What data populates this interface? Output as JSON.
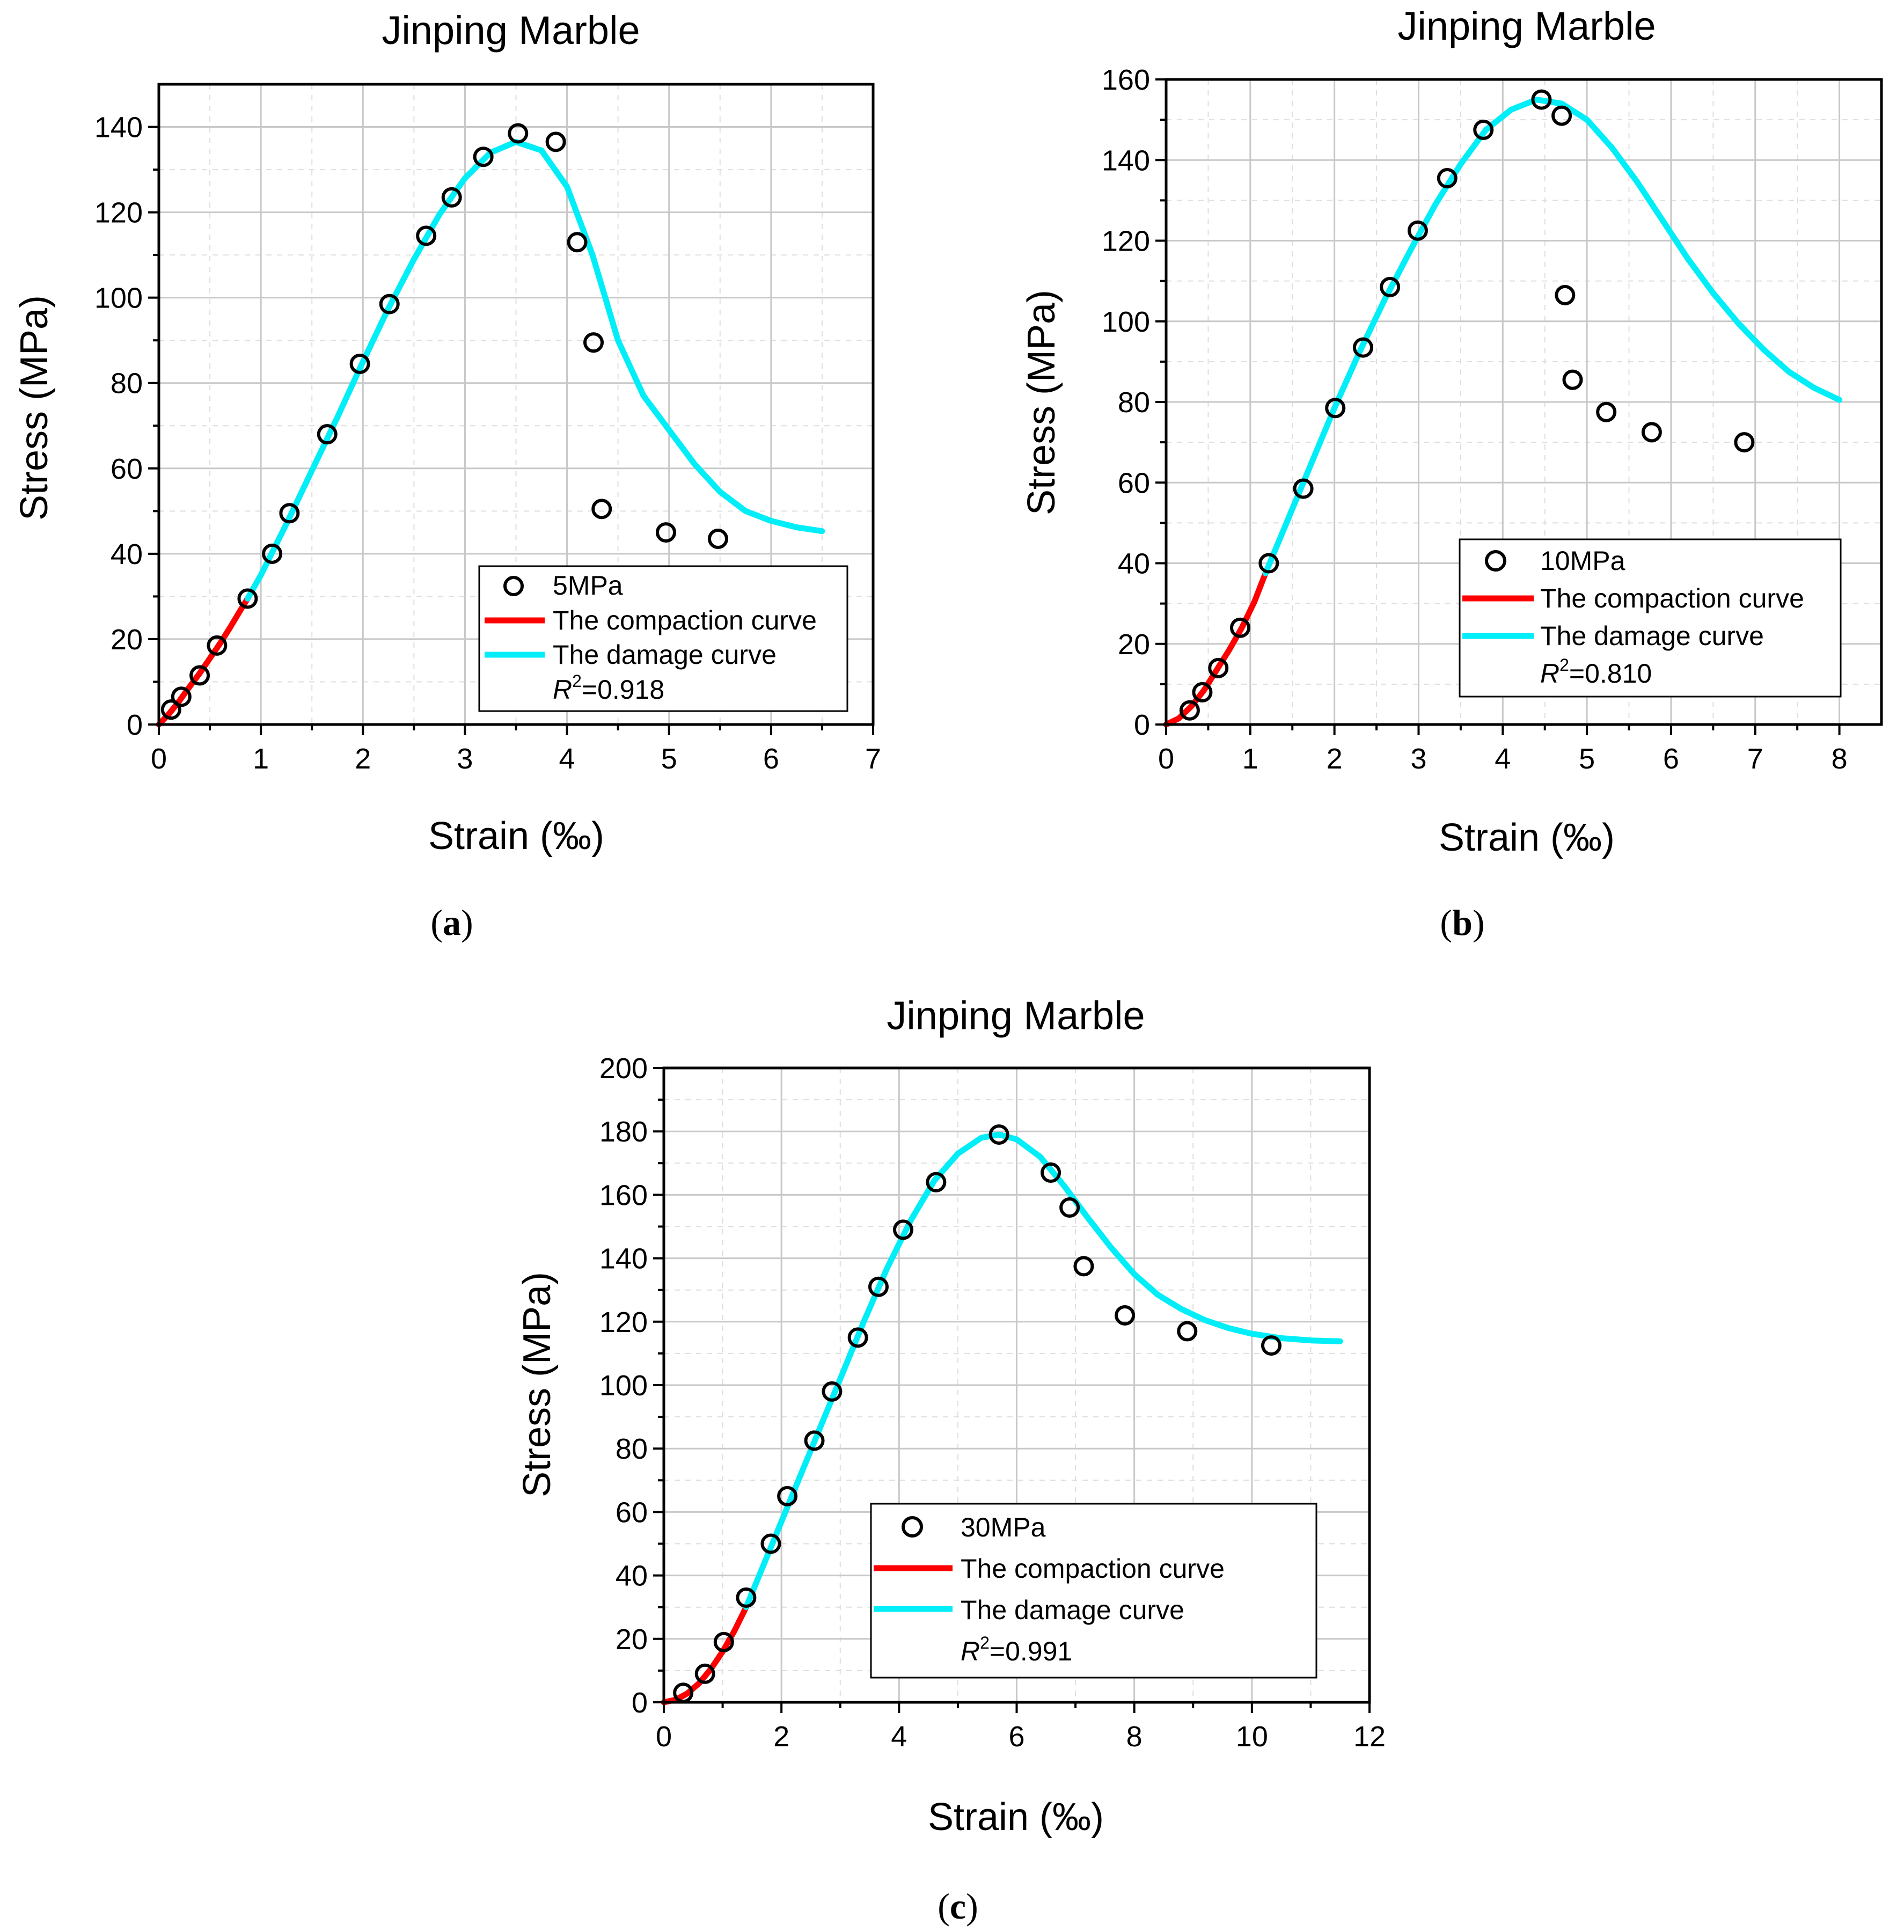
{
  "chart_data": [
    {
      "id": "a",
      "type": "scatter",
      "caption_letter": "a",
      "title": "Jinping Marble",
      "xlabel": "Strain (‰)",
      "ylabel": "Stress (MPa)",
      "xlim": [
        0,
        7
      ],
      "ylim": [
        0,
        150
      ],
      "xticks": [
        0,
        1,
        2,
        3,
        4,
        5,
        6,
        7
      ],
      "yticks": [
        0,
        20,
        40,
        60,
        80,
        100,
        120,
        140
      ],
      "grid": true,
      "legend_position": "bottom-right",
      "series": [
        {
          "name": "5MPa",
          "kind": "scatter",
          "color": "#000000",
          "points": [
            [
              0.12,
              3.5
            ],
            [
              0.22,
              6.5
            ],
            [
              0.4,
              11.5
            ],
            [
              0.57,
              18.5
            ],
            [
              0.87,
              29.5
            ],
            [
              1.11,
              40
            ],
            [
              1.28,
              49.5
            ],
            [
              1.65,
              68
            ],
            [
              1.97,
              84.5
            ],
            [
              2.26,
              98.5
            ],
            [
              2.62,
              114.5
            ],
            [
              2.87,
              123.5
            ],
            [
              3.18,
              133
            ],
            [
              3.52,
              138.5
            ],
            [
              3.89,
              136.5
            ],
            [
              4.1,
              113
            ],
            [
              4.26,
              89.5
            ],
            [
              4.34,
              50.5
            ],
            [
              4.97,
              45
            ],
            [
              5.48,
              43.5
            ]
          ]
        },
        {
          "name": "The compaction curve",
          "kind": "line",
          "color": "#ff0000",
          "points": [
            [
              0,
              0
            ],
            [
              0.1,
              2.5
            ],
            [
              0.2,
              5.5
            ],
            [
              0.3,
              8.8
            ],
            [
              0.4,
              12
            ],
            [
              0.5,
              15.5
            ],
            [
              0.6,
              19
            ],
            [
              0.7,
              22.8
            ],
            [
              0.8,
              26.8
            ],
            [
              0.87,
              29.5
            ]
          ]
        },
        {
          "name": "The damage curve",
          "kind": "line",
          "color": "#00eef8",
          "points": [
            [
              0.87,
              29.5
            ],
            [
              1.0,
              35
            ],
            [
              1.25,
              47
            ],
            [
              1.5,
              59.5
            ],
            [
              1.75,
              72
            ],
            [
              2.0,
              85
            ],
            [
              2.25,
              97.5
            ],
            [
              2.5,
              109
            ],
            [
              2.75,
              119.5
            ],
            [
              3.0,
              128
            ],
            [
              3.25,
              134
            ],
            [
              3.5,
              136.5
            ],
            [
              3.75,
              134.5
            ],
            [
              4.0,
              126
            ],
            [
              4.25,
              110
            ],
            [
              4.5,
              90
            ],
            [
              4.75,
              77
            ],
            [
              5.0,
              69
            ],
            [
              5.25,
              61
            ],
            [
              5.5,
              54.5
            ],
            [
              5.75,
              50
            ],
            [
              6.0,
              47.7
            ],
            [
              6.25,
              46.2
            ],
            [
              6.5,
              45.3
            ]
          ]
        }
      ],
      "r2_label": "R",
      "r2_exp": "2",
      "r2_value": "=0.918"
    },
    {
      "id": "b",
      "type": "scatter",
      "caption_letter": "b",
      "title": "Jinping Marble",
      "xlabel": "Strain (‰)",
      "ylabel": "Stress (MPa)",
      "xlim": [
        0,
        8.5
      ],
      "ylim": [
        0,
        160
      ],
      "xticks": [
        0,
        1,
        2,
        3,
        4,
        5,
        6,
        7,
        8
      ],
      "yticks": [
        0,
        20,
        40,
        60,
        80,
        100,
        120,
        140,
        160
      ],
      "grid": true,
      "legend_position": "bottom-right",
      "series": [
        {
          "name": "10MPa",
          "kind": "scatter",
          "color": "#000000",
          "points": [
            [
              0.28,
              3.5
            ],
            [
              0.43,
              8
            ],
            [
              0.62,
              14
            ],
            [
              0.88,
              24
            ],
            [
              1.22,
              40
            ],
            [
              1.63,
              58.5
            ],
            [
              2.01,
              78.5
            ],
            [
              2.34,
              93.5
            ],
            [
              2.66,
              108.5
            ],
            [
              2.99,
              122.5
            ],
            [
              3.34,
              135.5
            ],
            [
              3.77,
              147.5
            ],
            [
              4.46,
              155
            ],
            [
              4.7,
              151
            ],
            [
              4.74,
              106.5
            ],
            [
              4.83,
              85.5
            ],
            [
              5.23,
              77.5
            ],
            [
              5.77,
              72.5
            ],
            [
              6.87,
              70
            ]
          ]
        },
        {
          "name": "The compaction curve",
          "kind": "line",
          "color": "#ff0000",
          "points": [
            [
              0,
              0
            ],
            [
              0.15,
              1.5
            ],
            [
              0.3,
              4.5
            ],
            [
              0.45,
              8.5
            ],
            [
              0.6,
              13.5
            ],
            [
              0.75,
              18.5
            ],
            [
              0.9,
              24
            ],
            [
              1.05,
              30.5
            ],
            [
              1.18,
              37.5
            ]
          ]
        },
        {
          "name": "The damage curve",
          "kind": "line",
          "color": "#00eef8",
          "points": [
            [
              1.18,
              37.5
            ],
            [
              1.4,
              48.5
            ],
            [
              1.7,
              63.5
            ],
            [
              2.0,
              78.5
            ],
            [
              2.3,
              92.5
            ],
            [
              2.6,
              105.5
            ],
            [
              2.9,
              117.5
            ],
            [
              3.2,
              129
            ],
            [
              3.5,
              139
            ],
            [
              3.8,
              147.5
            ],
            [
              4.1,
              152.5
            ],
            [
              4.4,
              155
            ],
            [
              4.7,
              154
            ],
            [
              5.0,
              150
            ],
            [
              5.3,
              143
            ],
            [
              5.6,
              134.5
            ],
            [
              5.9,
              125
            ],
            [
              6.2,
              115.5
            ],
            [
              6.5,
              107
            ],
            [
              6.8,
              99.5
            ],
            [
              7.1,
              93
            ],
            [
              7.4,
              87.5
            ],
            [
              7.7,
              83.5
            ],
            [
              8.0,
              80.5
            ]
          ]
        }
      ],
      "r2_label": "R",
      "r2_exp": "2",
      "r2_value": "=0.810"
    },
    {
      "id": "c",
      "type": "scatter",
      "caption_letter": "c",
      "title": "Jinping Marble",
      "xlabel": "Strain (‰)",
      "ylabel": "Stress (MPa)",
      "xlim": [
        0,
        12
      ],
      "ylim": [
        0,
        200
      ],
      "xticks": [
        0,
        2,
        4,
        6,
        8,
        10,
        12
      ],
      "yticks": [
        0,
        20,
        40,
        60,
        80,
        100,
        120,
        140,
        160,
        180,
        200
      ],
      "grid": true,
      "legend_position": "bottom-right",
      "series": [
        {
          "name": "30MPa",
          "kind": "scatter",
          "color": "#000000",
          "points": [
            [
              0.33,
              3
            ],
            [
              0.7,
              9
            ],
            [
              1.02,
              19
            ],
            [
              1.4,
              33
            ],
            [
              1.82,
              50
            ],
            [
              2.1,
              65
            ],
            [
              2.56,
              82.5
            ],
            [
              2.86,
              98
            ],
            [
              3.3,
              115
            ],
            [
              3.65,
              131
            ],
            [
              4.07,
              149
            ],
            [
              4.63,
              164
            ],
            [
              5.7,
              179
            ],
            [
              6.58,
              167
            ],
            [
              6.9,
              156
            ],
            [
              7.14,
              137.5
            ],
            [
              7.84,
              122
            ],
            [
              8.9,
              117
            ],
            [
              10.33,
              112.5
            ]
          ]
        },
        {
          "name": "The compaction curve",
          "kind": "line",
          "color": "#ff0000",
          "points": [
            [
              0,
              0
            ],
            [
              0.2,
              0.8
            ],
            [
              0.4,
              2.8
            ],
            [
              0.6,
              6
            ],
            [
              0.8,
              10.5
            ],
            [
              1.0,
              16
            ],
            [
              1.2,
              22.5
            ],
            [
              1.4,
              30
            ]
          ]
        },
        {
          "name": "The damage curve",
          "kind": "line",
          "color": "#00eef8",
          "points": [
            [
              1.4,
              30
            ],
            [
              1.8,
              48
            ],
            [
              2.2,
              66
            ],
            [
              2.6,
              84
            ],
            [
              3.0,
              102
            ],
            [
              3.4,
              120
            ],
            [
              3.8,
              137
            ],
            [
              4.2,
              152
            ],
            [
              4.6,
              164.5
            ],
            [
              5.0,
              173
            ],
            [
              5.4,
              178
            ],
            [
              5.7,
              179
            ],
            [
              6.0,
              177.5
            ],
            [
              6.4,
              172
            ],
            [
              6.8,
              163
            ],
            [
              7.2,
              153
            ],
            [
              7.6,
              143.5
            ],
            [
              8.0,
              135
            ],
            [
              8.4,
              128.5
            ],
            [
              8.8,
              124
            ],
            [
              9.2,
              120.5
            ],
            [
              9.6,
              118
            ],
            [
              10.0,
              116.2
            ],
            [
              10.5,
              114.8
            ],
            [
              11.0,
              114.1
            ],
            [
              11.5,
              113.8
            ]
          ]
        }
      ],
      "r2_label": "R",
      "r2_exp": "2",
      "r2_value": "=0.991"
    }
  ]
}
